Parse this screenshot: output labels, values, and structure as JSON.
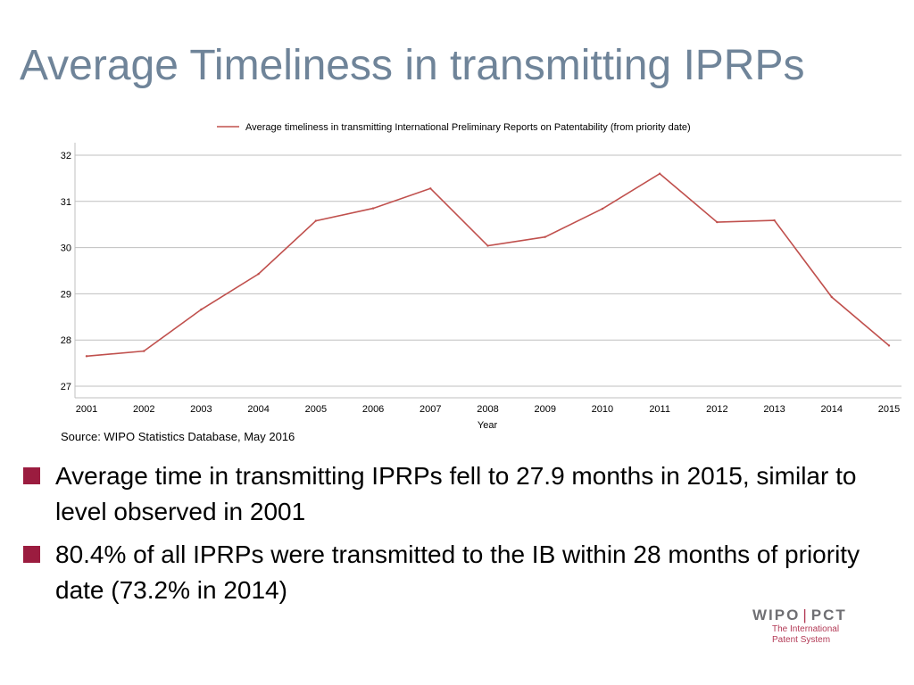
{
  "slide": {
    "title": "Average Timeliness in transmitting IPRPs",
    "source": "Source: WIPO Statistics Database, May 2016",
    "bullets": [
      "Average time in transmitting IPRPs fell to 27.9 months in 2015, similar to level observed in 2001",
      "80.4% of all IPRPs were transmitted to the IB within 28 months of priority date (73.2% in 2014)"
    ],
    "bullet_color": "#9b1c3f",
    "title_color": "#6f8499"
  },
  "logo": {
    "wipo": "WIPO",
    "pct": "PCT",
    "line1": "The International",
    "line2": "Patent System"
  },
  "chart_data": {
    "type": "line",
    "x": [
      "2001",
      "2002",
      "2003",
      "2004",
      "2005",
      "2006",
      "2007",
      "2008",
      "2009",
      "2010",
      "2011",
      "2012",
      "2013",
      "2014",
      "2015"
    ],
    "series": [
      {
        "name": "Average timeliness in transmitting International Preliminary Reports on Patentability (from priority date)",
        "values": [
          27.65,
          27.76,
          28.66,
          29.43,
          30.58,
          30.85,
          31.28,
          30.04,
          30.23,
          30.84,
          31.6,
          30.55,
          30.59,
          28.93,
          27.88
        ],
        "color": "#c0504d"
      }
    ],
    "xlabel": "Year",
    "ylabel": "",
    "ylim": [
      27,
      32
    ],
    "yticks": [
      "27",
      "28",
      "29",
      "30",
      "31",
      "32"
    ],
    "grid": true,
    "legend_position": "top"
  }
}
